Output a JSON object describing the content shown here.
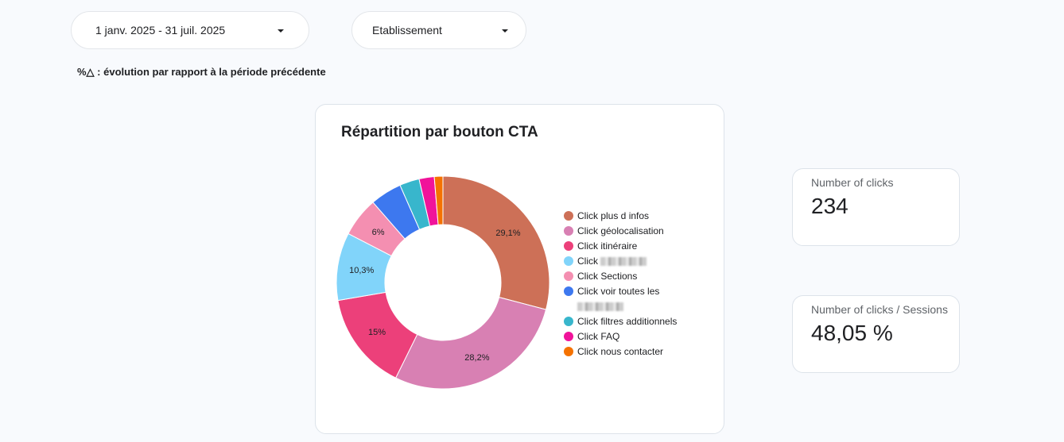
{
  "filters": {
    "date_range": "1 janv. 2025 - 31 juil. 2025",
    "establishment": "Etablissement"
  },
  "note": "%△ : évolution par rapport à la période précédente",
  "chart_data": {
    "type": "pie",
    "donut": true,
    "title": "Répartition par bouton CTA",
    "legend_position": "right",
    "categories": [
      "Click plus d infos",
      "Click géolocalisation",
      "Click itinéraire",
      "Click [redacted]",
      "Click Sections",
      "Click voir toutes les [redacted]",
      "Click filtres additionnels",
      "Click FAQ",
      "Click nous contacter"
    ],
    "values": [
      29.1,
      28.2,
      15,
      10.3,
      6,
      4.8,
      3.0,
      2.3,
      1.3
    ],
    "data_labels": [
      "29,1%",
      "28,2%",
      "15%",
      "10,3%",
      "6%",
      "",
      "",
      "",
      ""
    ],
    "colors": [
      "#cd7057",
      "#d880b3",
      "#ec407a",
      "#81d4fa",
      "#f48fb1",
      "#3d78ef",
      "#38b6cc",
      "#f0139a",
      "#f57200"
    ]
  },
  "legend": {
    "items": [
      {
        "label": "Click plus d infos"
      },
      {
        "label": "Click géolocalisation"
      },
      {
        "label": "Click itinéraire"
      },
      {
        "label": "Click",
        "redacted": true
      },
      {
        "label": "Click Sections"
      },
      {
        "label": "Click voir toutes les",
        "redacted": true
      },
      {
        "label": "Click filtres additionnels"
      },
      {
        "label": "Click FAQ"
      },
      {
        "label": "Click nous contacter"
      }
    ]
  },
  "kpis": [
    {
      "label": "Number of clicks",
      "value": "234"
    },
    {
      "label": "Number of clicks / Sessions",
      "value": "48,05 %"
    }
  ]
}
